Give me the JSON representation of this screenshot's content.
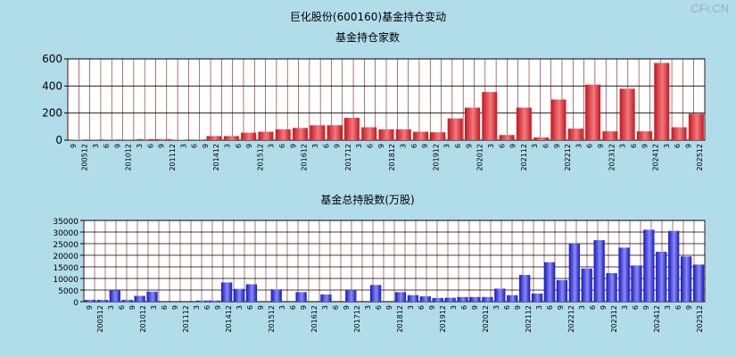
{
  "title": "巨化股份(600160)基金持仓变动",
  "watermark": "CFi.CN",
  "colors": {
    "background": "#b1dcea",
    "red_bar": "#e8323a",
    "blue_bar": "#3a3ae8"
  },
  "x_tick_labels": [
    "9",
    "200512",
    "3",
    "6",
    "9",
    "201012",
    "3",
    "6",
    "9",
    "201112",
    "3",
    "6",
    "9",
    "201412",
    "3",
    "6",
    "9",
    "201512",
    "3",
    "6",
    "9",
    "201612",
    "3",
    "6",
    "9",
    "201712",
    "3",
    "6",
    "9",
    "201812",
    "3",
    "6",
    "9",
    "201912",
    "3",
    "6",
    "9",
    "202012",
    "3",
    "6",
    "9",
    "202112",
    "3",
    "6",
    "9",
    "202212",
    "3",
    "6",
    "9",
    "202312",
    "3",
    "6",
    "9",
    "202412",
    "3",
    "6",
    "9",
    "202512"
  ],
  "chart_data": [
    {
      "type": "bar",
      "title": "基金持仓家数",
      "ylim": [
        0,
        600
      ],
      "yticks": [
        0,
        200,
        400,
        600
      ],
      "values": [
        3,
        2,
        2,
        2,
        8,
        8,
        3,
        2,
        30,
        30,
        55,
        62,
        80,
        90,
        110,
        110,
        165,
        95,
        80,
        80,
        62,
        58,
        160,
        240,
        355,
        38,
        240,
        20,
        300,
        85,
        410,
        65,
        380,
        65,
        570,
        95,
        195
      ]
    },
    {
      "type": "bar",
      "title": "基金总持股数(万股)",
      "ylim": [
        0,
        35000
      ],
      "yticks": [
        0,
        5000,
        10000,
        15000,
        20000,
        25000,
        30000,
        35000
      ],
      "values": [
        800,
        800,
        4800,
        800,
        2500,
        4300,
        0,
        0,
        0,
        500,
        500,
        8300,
        5500,
        7500,
        0,
        5300,
        0,
        4100,
        0,
        3100,
        0,
        4900,
        0,
        7200,
        0,
        4100,
        2800,
        2300,
        1600,
        1700,
        2000,
        2000,
        2000,
        5600,
        2800,
        11500,
        3500,
        17000,
        9300,
        25000,
        14300,
        26500,
        12300,
        23300,
        15600,
        31000,
        21500,
        30500,
        19500,
        16000
      ]
    }
  ]
}
